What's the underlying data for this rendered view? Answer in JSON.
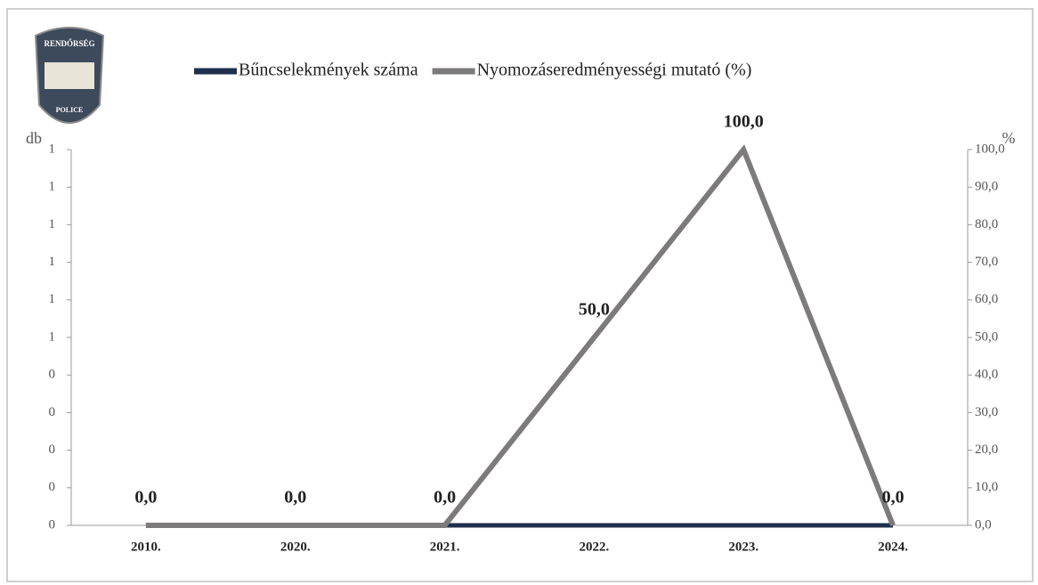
{
  "chart_data": {
    "type": "line",
    "categories": [
      "2010.",
      "2020.",
      "2021.",
      "2022.",
      "2023.",
      "2024."
    ],
    "y_label": "db",
    "y2_label": "%",
    "series": [
      {
        "name": "Bűncselekmények száma",
        "color": "#1f2f4d",
        "axis": "y",
        "values": [
          0,
          0,
          0,
          0,
          0,
          0
        ]
      },
      {
        "name": "Nyomozáseredményességi mutató (%)",
        "color": "#7d7a7c",
        "axis": "y2",
        "values": [
          0,
          0,
          0,
          50,
          100,
          0
        ],
        "value_labels": [
          "0,0",
          "0,0",
          "0,0",
          "50,0",
          "100,0",
          "0,0"
        ]
      }
    ],
    "ylim": [
      0,
      1
    ],
    "yticks": [
      0,
      {
        "value": 0.1,
        "label": "0"
      },
      {
        "value": 0.2,
        "label": "0"
      },
      {
        "value": 0.3,
        "label": "0"
      },
      {
        "value": 0.4,
        "label": "0"
      },
      {
        "value": 0.5,
        "label": "1"
      },
      {
        "value": 0.6,
        "label": "1"
      },
      {
        "value": 0.7,
        "label": "1"
      },
      {
        "value": 0.8,
        "label": "1"
      },
      {
        "value": 0.9,
        "label": "1"
      },
      1
    ],
    "y2lim": [
      0,
      100
    ],
    "y2ticks": [
      {
        "value": 0,
        "label": "0,0"
      },
      {
        "value": 10,
        "label": "10,0"
      },
      {
        "value": 20,
        "label": "20,0"
      },
      {
        "value": 30,
        "label": "30,0"
      },
      {
        "value": 40,
        "label": "40,0"
      },
      {
        "value": 50,
        "label": "50,0"
      },
      {
        "value": 60,
        "label": "60,0"
      },
      {
        "value": 70,
        "label": "70,0"
      },
      {
        "value": 80,
        "label": "80,0"
      },
      {
        "value": 90,
        "label": "90,0"
      },
      {
        "value": 100,
        "label": "100,0"
      }
    ],
    "legend": "top"
  },
  "logo": {
    "top_text": "RENDŐRSÉG",
    "bottom_text": "POLICE"
  }
}
